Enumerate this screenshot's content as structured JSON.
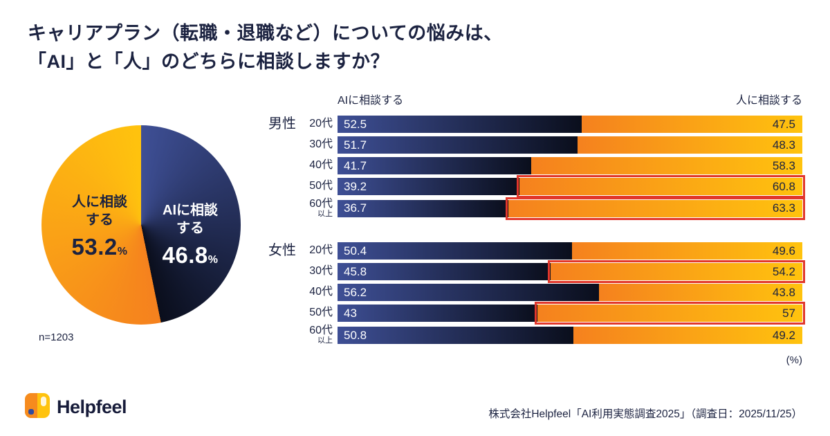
{
  "title": {
    "line1": "キャリアプラン（転職・退職など）についての悩みは、",
    "line2": "「AI」と「人」のどちらに相談しますか？"
  },
  "pie": {
    "human_label_line1": "人に相談",
    "human_label_line2": "する",
    "human_value": "53.2",
    "human_unit": "%",
    "ai_label_line1": "AIに相談",
    "ai_label_line2": "する",
    "ai_value": "46.8",
    "ai_unit": "%",
    "sample_size": "n=1203"
  },
  "bars": {
    "ai_header": "AIに相談する",
    "human_header": "人に相談する",
    "unit_label": "(%)",
    "groups": [
      {
        "label": "男性",
        "rows": [
          {
            "age": "20代",
            "age_sub": "",
            "ai": "52.5",
            "human": "47.5",
            "highlight": false
          },
          {
            "age": "30代",
            "age_sub": "",
            "ai": "51.7",
            "human": "48.3",
            "highlight": false
          },
          {
            "age": "40代",
            "age_sub": "",
            "ai": "41.7",
            "human": "58.3",
            "highlight": false
          },
          {
            "age": "50代",
            "age_sub": "",
            "ai": "39.2",
            "human": "60.8",
            "highlight": true
          },
          {
            "age": "60代",
            "age_sub": "以上",
            "ai": "36.7",
            "human": "63.3",
            "highlight": true
          }
        ]
      },
      {
        "label": "女性",
        "rows": [
          {
            "age": "20代",
            "age_sub": "",
            "ai": "50.4",
            "human": "49.6",
            "highlight": false
          },
          {
            "age": "30代",
            "age_sub": "",
            "ai": "45.8",
            "human": "54.2",
            "highlight": true
          },
          {
            "age": "40代",
            "age_sub": "",
            "ai": "56.2",
            "human": "43.8",
            "highlight": false
          },
          {
            "age": "50代",
            "age_sub": "",
            "ai": "43",
            "human": "57",
            "highlight": true
          },
          {
            "age": "60代",
            "age_sub": "以上",
            "ai": "50.8",
            "human": "49.2",
            "highlight": false
          }
        ]
      }
    ]
  },
  "chart_data": [
    {
      "type": "pie",
      "title": "キャリアプラン（転職・退職など）についての悩みは、「AI」と「人」のどちらに相談しますか？",
      "labels": [
        "人に相談する",
        "AIに相談する"
      ],
      "values": [
        53.2,
        46.8
      ],
      "unit": "%",
      "n": 1203
    },
    {
      "type": "bar",
      "orientation": "horizontal-stacked-100",
      "categories": [
        "男性20代",
        "男性30代",
        "男性40代",
        "男性50代",
        "男性60代以上",
        "女性20代",
        "女性30代",
        "女性40代",
        "女性50代",
        "女性60代以上"
      ],
      "series": [
        {
          "name": "AIに相談する",
          "values": [
            52.5,
            51.7,
            41.7,
            39.2,
            36.7,
            50.4,
            45.8,
            56.2,
            43,
            50.8
          ]
        },
        {
          "name": "人に相談する",
          "values": [
            47.5,
            48.3,
            58.3,
            60.8,
            63.3,
            49.6,
            54.2,
            43.8,
            57,
            49.2
          ]
        }
      ],
      "highlighted_categories": [
        "男性50代",
        "男性60代以上",
        "女性30代",
        "女性50代"
      ],
      "xlim": [
        0,
        100
      ],
      "unit": "%",
      "legend_position": "top"
    }
  ],
  "colors": {
    "text_dark": "#1b2240",
    "ai_gradient_start": "#3e4f95",
    "ai_gradient_end": "#0a0e1c",
    "human_gradient_start": "#f5811e",
    "human_gradient_end": "#ffc30e",
    "highlight_red": "#e2372b"
  },
  "footer": {
    "logo_text": "Helpfeel",
    "source": "株式会社Helpfeel「AI利用実態調査2025」（調査日：2025/11/25）"
  }
}
